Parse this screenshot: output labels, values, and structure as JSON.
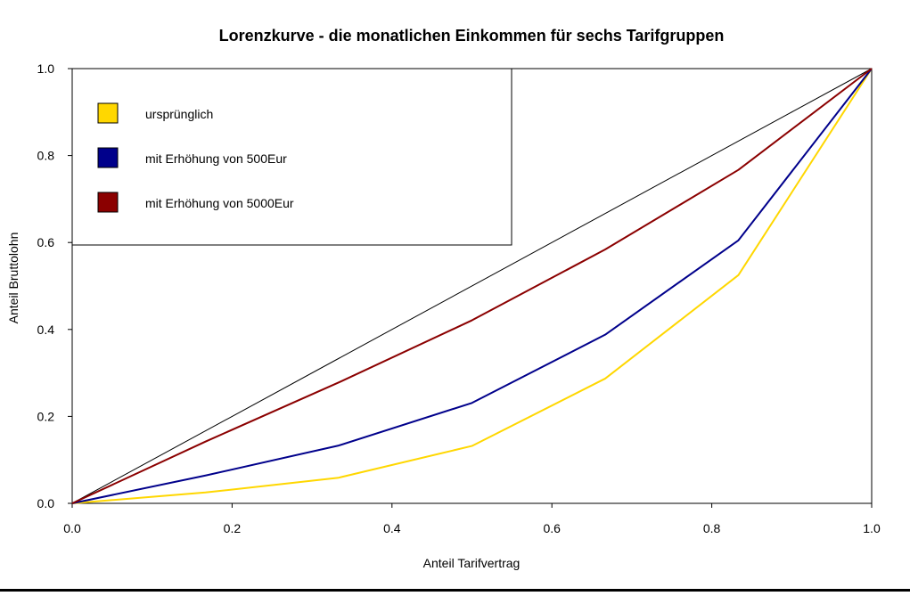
{
  "chart_data": {
    "type": "line",
    "title": "Lorenzkurve -  die monatlichen Einkommen für sechs Tarifgruppen",
    "xlabel": "Anteil Tarifvertrag",
    "ylabel": "Anteil Bruttolohn",
    "xlim": [
      0,
      1
    ],
    "ylim": [
      0,
      1
    ],
    "x_ticks": [
      "0.0",
      "0.2",
      "0.4",
      "0.6",
      "0.8",
      "1.0"
    ],
    "y_ticks": [
      "0.0",
      "0.2",
      "0.4",
      "0.6",
      "0.8",
      "1.0"
    ],
    "grid": false,
    "legend_position": "top-left",
    "equality_line": {
      "x": [
        0,
        1
      ],
      "y": [
        0,
        1
      ],
      "color": "#000000"
    },
    "x": [
      0,
      0.1667,
      0.3333,
      0.5,
      0.6667,
      0.8333,
      1.0
    ],
    "series": [
      {
        "name": "ursprünglich",
        "color": "#FFD700",
        "values": [
          0,
          0.025,
          0.059,
          0.132,
          0.287,
          0.525,
          1.0
        ]
      },
      {
        "name": "mit Erhöhung von 500Eur",
        "color": "#00008B",
        "values": [
          0,
          0.064,
          0.133,
          0.231,
          0.388,
          0.605,
          1.0
        ]
      },
      {
        "name": "mit Erhöhung von 5000Eur",
        "color": "#8B0000",
        "values": [
          0,
          0.142,
          0.278,
          0.421,
          0.584,
          0.767,
          1.0
        ]
      }
    ]
  }
}
